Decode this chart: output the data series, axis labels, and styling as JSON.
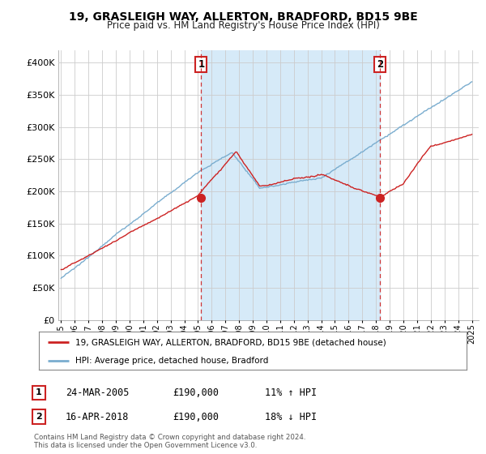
{
  "title1": "19, GRASLEIGH WAY, ALLERTON, BRADFORD, BD15 9BE",
  "title2": "Price paid vs. HM Land Registry's House Price Index (HPI)",
  "ylim": [
    0,
    420000
  ],
  "yticks": [
    0,
    50000,
    100000,
    150000,
    200000,
    250000,
    300000,
    350000,
    400000
  ],
  "ytick_labels": [
    "£0",
    "£50K",
    "£100K",
    "£150K",
    "£200K",
    "£250K",
    "£300K",
    "£350K",
    "£400K"
  ],
  "hpi_color": "#7aadcf",
  "hpi_fill_color": "#d6eaf8",
  "price_color": "#cc2222",
  "vline_color": "#cc2222",
  "sale1_year": 2005.23,
  "sale1_price": 190000,
  "sale1_label": "1",
  "sale1_date": "24-MAR-2005",
  "sale1_hpi_pct": "11% ↑ HPI",
  "sale2_year": 2018.29,
  "sale2_price": 190000,
  "sale2_label": "2",
  "sale2_date": "16-APR-2018",
  "sale2_hpi_pct": "18% ↓ HPI",
  "legend_label1": "19, GRASLEIGH WAY, ALLERTON, BRADFORD, BD15 9BE (detached house)",
  "legend_label2": "HPI: Average price, detached house, Bradford",
  "footer1": "Contains HM Land Registry data © Crown copyright and database right 2024.",
  "footer2": "This data is licensed under the Open Government Licence v3.0.",
  "background_color": "#ffffff",
  "grid_color": "#cccccc",
  "xlim_left": 1994.8,
  "xlim_right": 2025.5
}
